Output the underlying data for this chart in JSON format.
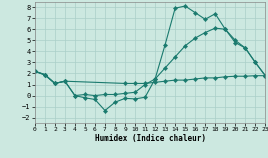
{
  "xlabel": "Humidex (Indice chaleur)",
  "xlim": [
    0,
    23
  ],
  "ylim": [
    -2.5,
    8.5
  ],
  "xticks": [
    0,
    1,
    2,
    3,
    4,
    5,
    6,
    7,
    8,
    9,
    10,
    11,
    12,
    13,
    14,
    15,
    16,
    17,
    18,
    19,
    20,
    21,
    22,
    23
  ],
  "yticks": [
    -2,
    -1,
    0,
    1,
    2,
    3,
    4,
    5,
    6,
    7,
    8
  ],
  "line_color": "#1a7a6e",
  "bg_color": "#cce8e0",
  "grid_color": "#aacfc8",
  "line1_x": [
    0,
    1,
    2,
    3,
    4,
    5,
    6,
    7,
    8,
    9,
    10,
    11,
    12,
    13,
    14,
    15,
    16,
    17,
    18,
    19,
    20,
    21,
    22,
    23
  ],
  "line1_y": [
    2.2,
    1.9,
    1.1,
    1.3,
    0.0,
    -0.2,
    -0.35,
    -1.35,
    -0.6,
    -0.25,
    -0.3,
    -0.15,
    1.5,
    4.6,
    7.9,
    8.1,
    7.5,
    6.9,
    7.4,
    6.0,
    4.8,
    4.3,
    3.0,
    1.8
  ],
  "line2_x": [
    0,
    1,
    2,
    3,
    4,
    5,
    6,
    7,
    8,
    9,
    10,
    11,
    12,
    13,
    14,
    15,
    16,
    17,
    18,
    19,
    20,
    21,
    22,
    23
  ],
  "line2_y": [
    2.2,
    1.9,
    1.1,
    1.3,
    0.0,
    0.1,
    0.0,
    0.1,
    0.1,
    0.2,
    0.3,
    1.0,
    1.5,
    2.5,
    3.5,
    4.5,
    5.2,
    5.7,
    6.1,
    6.0,
    5.0,
    4.3,
    3.0,
    1.8
  ],
  "line3_x": [
    0,
    1,
    2,
    3,
    9,
    10,
    11,
    12,
    13,
    14,
    15,
    16,
    17,
    18,
    19,
    20,
    21,
    22,
    23
  ],
  "line3_y": [
    2.2,
    1.85,
    1.1,
    1.3,
    1.1,
    1.1,
    1.1,
    1.2,
    1.3,
    1.4,
    1.4,
    1.5,
    1.6,
    1.6,
    1.7,
    1.75,
    1.75,
    1.8,
    1.8
  ]
}
